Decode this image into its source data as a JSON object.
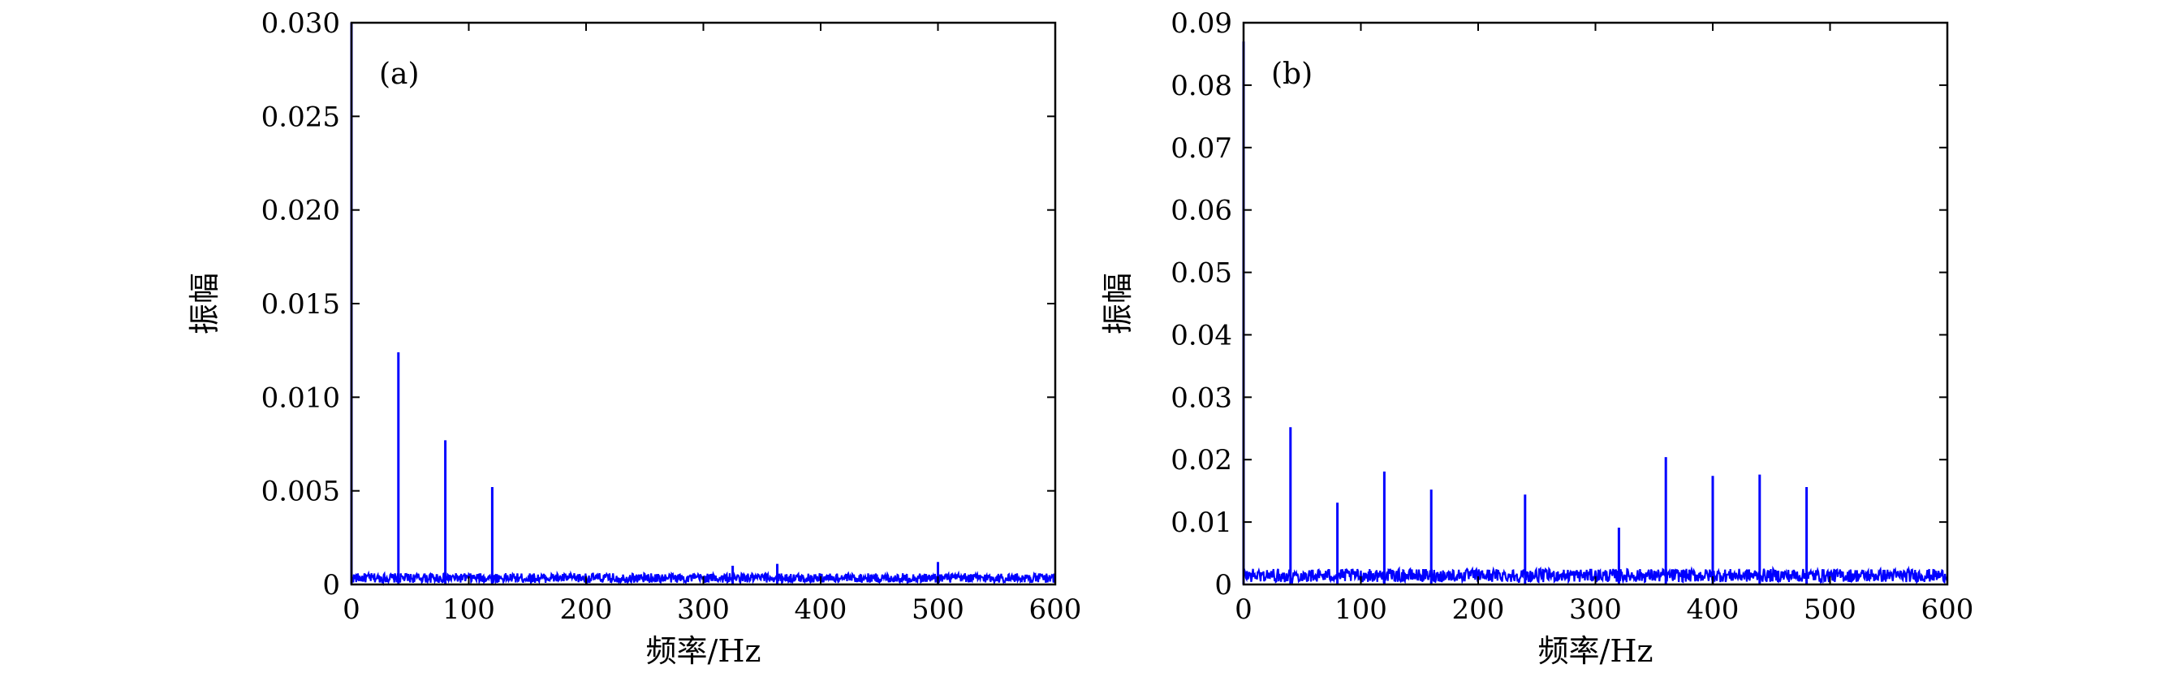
{
  "chart_data": [
    {
      "type": "line",
      "panel_label": "(a)",
      "xlabel": "频率/Hz",
      "ylabel": "振幅",
      "xlim": [
        0,
        600
      ],
      "ylim": [
        0,
        0.03
      ],
      "xticks": [
        0,
        100,
        200,
        300,
        400,
        500,
        600
      ],
      "xtick_labels": [
        "0",
        "100",
        "200",
        "300",
        "400",
        "500",
        "600"
      ],
      "yticks": [
        0,
        0.005,
        0.01,
        0.015,
        0.02,
        0.025,
        0.03
      ],
      "ytick_labels": [
        "0",
        "0.005",
        "0.010",
        "0.015",
        "0.020",
        "0.025",
        "0.030"
      ],
      "color": "#0000ff",
      "grid": false,
      "noise_floor": 0.0006,
      "series": [
        {
          "x": [
            0,
            40,
            80,
            120,
            325,
            363,
            500
          ],
          "y": [
            0.03,
            0.0124,
            0.0077,
            0.0052,
            0.001,
            0.0011,
            0.0012
          ]
        }
      ]
    },
    {
      "type": "line",
      "panel_label": "(b)",
      "xlabel": "频率/Hz",
      "ylabel": "振幅",
      "xlim": [
        0,
        600
      ],
      "ylim": [
        0,
        0.09
      ],
      "xticks": [
        0,
        100,
        200,
        300,
        400,
        500,
        600
      ],
      "xtick_labels": [
        "0",
        "100",
        "200",
        "300",
        "400",
        "500",
        "600"
      ],
      "yticks": [
        0,
        0.01,
        0.02,
        0.03,
        0.04,
        0.05,
        0.06,
        0.07,
        0.08,
        0.09
      ],
      "ytick_labels": [
        "0",
        "0.01",
        "0.02",
        "0.03",
        "0.04",
        "0.05",
        "0.06",
        "0.07",
        "0.08",
        "0.09"
      ],
      "color": "#0000ff",
      "grid": false,
      "noise_floor": 0.0025,
      "series": [
        {
          "x": [
            0,
            40,
            80,
            120,
            160,
            240,
            320,
            360,
            400,
            440,
            480
          ],
          "y": [
            0.087,
            0.0252,
            0.0131,
            0.0181,
            0.0152,
            0.0144,
            0.0091,
            0.0204,
            0.0174,
            0.0176,
            0.0156
          ]
        }
      ]
    }
  ]
}
